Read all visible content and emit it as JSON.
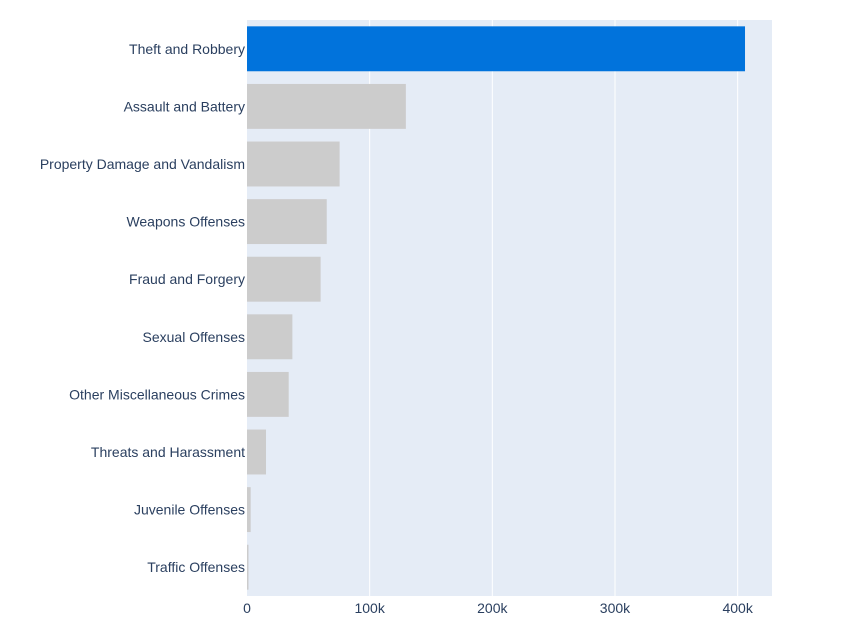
{
  "chart_data": {
    "type": "bar",
    "orientation": "horizontal",
    "title": "",
    "xlabel": "",
    "ylabel": "",
    "categories": [
      "Theft and Robbery",
      "Assault and Battery",
      "Property Damage and Vandalism",
      "Weapons Offenses",
      "Fraud and Forgery",
      "Sexual Offenses",
      "Other Miscellaneous Crimes",
      "Threats and Harassment",
      "Juvenile Offenses",
      "Traffic Offenses"
    ],
    "values": [
      406000,
      129500,
      75500,
      65000,
      60000,
      37000,
      34000,
      15500,
      3000,
      1200
    ],
    "highlight_index": 0,
    "xlim": [
      0,
      428000
    ],
    "xticks": [
      0,
      100000,
      200000,
      300000,
      400000
    ],
    "xtick_labels": [
      "0",
      "100k",
      "200k",
      "300k",
      "400k"
    ],
    "grid": true,
    "colors": {
      "highlight": "#0173dc",
      "default": "#cccccc",
      "plot_background": "#e5ecf6",
      "gridline": "#ffffff",
      "text": "#2a3f5f"
    }
  }
}
